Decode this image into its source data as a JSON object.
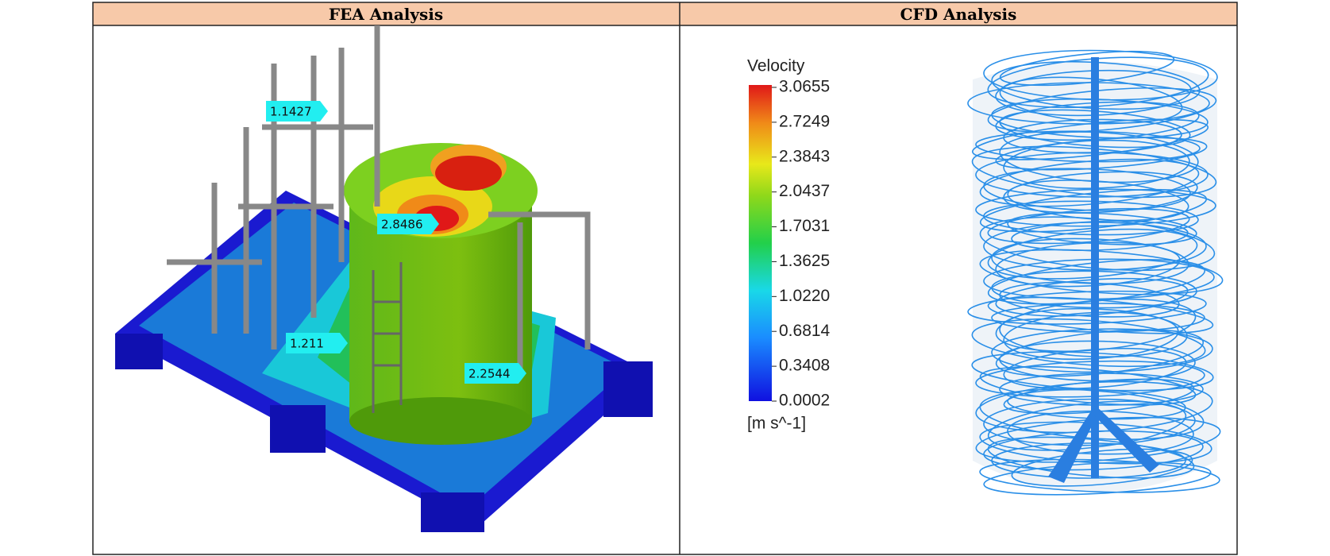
{
  "table": {
    "headers": [
      "FEA Analysis",
      "CFD Analysis"
    ]
  },
  "fea": {
    "labels": [
      "1.1427",
      "2.8486",
      "1.211",
      "2.2544"
    ]
  },
  "cfd": {
    "legend_title": "Velocity",
    "legend_ticks": [
      "3.0655",
      "2.7249",
      "2.3843",
      "2.0437",
      "1.7031",
      "1.3625",
      "1.0220",
      "0.6814",
      "0.3408",
      "0.0002"
    ],
    "unit": "[m s^-1]"
  }
}
